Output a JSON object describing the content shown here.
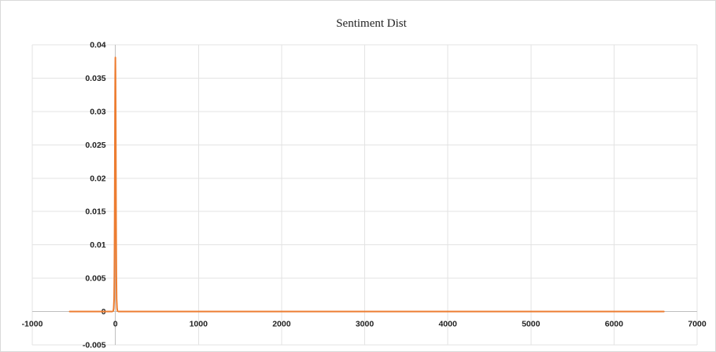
{
  "chart_data": {
    "type": "line",
    "title": "Sentiment Dist",
    "xlabel": "",
    "ylabel": "",
    "xlim": [
      -1000,
      7000
    ],
    "ylim": [
      -0.005,
      0.04
    ],
    "x_ticks": [
      -1000,
      0,
      1000,
      2000,
      3000,
      4000,
      5000,
      6000,
      7000
    ],
    "x_tick_labels": [
      "-1000",
      "0",
      "1000",
      "2000",
      "3000",
      "4000",
      "5000",
      "6000",
      "7000"
    ],
    "y_ticks": [
      -0.005,
      0,
      0.005,
      0.01,
      0.015,
      0.02,
      0.025,
      0.03,
      0.035,
      0.04
    ],
    "y_tick_labels": [
      "-0.005",
      "0",
      "0.005",
      "0.01",
      "0.015",
      "0.02",
      "0.025",
      "0.03",
      "0.035",
      "0.04"
    ],
    "grid": true,
    "legend": "none",
    "series": [
      {
        "color": "#ED7D31",
        "x": [
          -550,
          -200,
          -100,
          -40,
          -25,
          -20,
          -15,
          -12,
          -10,
          -8,
          -6,
          -4,
          -2,
          0,
          2,
          4,
          6,
          8,
          10,
          12,
          15,
          20,
          25,
          40,
          100,
          500,
          1000,
          2000,
          3000,
          4000,
          5000,
          6000,
          6600
        ],
        "y": [
          0,
          0,
          0,
          0,
          0.0001,
          0.0005,
          0.0019,
          0.0053,
          0.0097,
          0.0157,
          0.0233,
          0.0304,
          0.0354,
          0.0381,
          0.0354,
          0.0304,
          0.0233,
          0.0157,
          0.0097,
          0.0053,
          0.0019,
          0.0005,
          0.0001,
          0,
          0,
          0,
          0,
          0,
          0,
          0,
          0,
          0,
          0
        ]
      }
    ]
  }
}
